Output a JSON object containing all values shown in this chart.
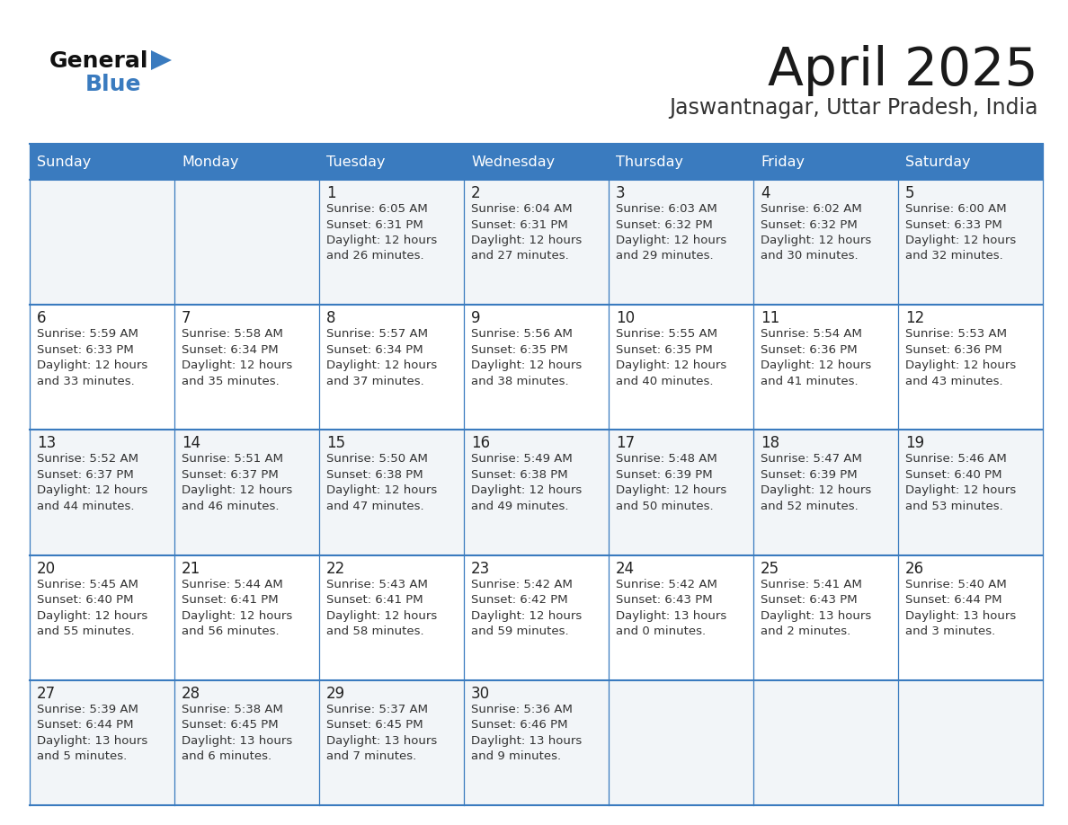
{
  "title": "April 2025",
  "subtitle": "Jaswantnagar, Uttar Pradesh, India",
  "days_of_week": [
    "Sunday",
    "Monday",
    "Tuesday",
    "Wednesday",
    "Thursday",
    "Friday",
    "Saturday"
  ],
  "header_bg": "#3a7bbf",
  "header_text": "#ffffff",
  "row_bg_odd": "#f2f5f8",
  "row_bg_even": "#ffffff",
  "cell_border": "#3a7bbf",
  "day_number_color": "#222222",
  "cell_text_color": "#333333",
  "title_color": "#1a1a1a",
  "subtitle_color": "#333333",
  "logo_general_color": "#111111",
  "logo_blue_color": "#3a7bbf",
  "logo_triangle_color": "#3a7bbf",
  "calendar_data": [
    [
      {
        "day": "",
        "sunrise": "",
        "sunset": "",
        "daylight_h": "",
        "daylight_m": ""
      },
      {
        "day": "",
        "sunrise": "",
        "sunset": "",
        "daylight_h": "",
        "daylight_m": ""
      },
      {
        "day": "1",
        "sunrise": "6:05 AM",
        "sunset": "6:31 PM",
        "daylight_h": "12 hours",
        "daylight_m": "and 26 minutes."
      },
      {
        "day": "2",
        "sunrise": "6:04 AM",
        "sunset": "6:31 PM",
        "daylight_h": "12 hours",
        "daylight_m": "and 27 minutes."
      },
      {
        "day": "3",
        "sunrise": "6:03 AM",
        "sunset": "6:32 PM",
        "daylight_h": "12 hours",
        "daylight_m": "and 29 minutes."
      },
      {
        "day": "4",
        "sunrise": "6:02 AM",
        "sunset": "6:32 PM",
        "daylight_h": "12 hours",
        "daylight_m": "and 30 minutes."
      },
      {
        "day": "5",
        "sunrise": "6:00 AM",
        "sunset": "6:33 PM",
        "daylight_h": "12 hours",
        "daylight_m": "and 32 minutes."
      }
    ],
    [
      {
        "day": "6",
        "sunrise": "5:59 AM",
        "sunset": "6:33 PM",
        "daylight_h": "12 hours",
        "daylight_m": "and 33 minutes."
      },
      {
        "day": "7",
        "sunrise": "5:58 AM",
        "sunset": "6:34 PM",
        "daylight_h": "12 hours",
        "daylight_m": "and 35 minutes."
      },
      {
        "day": "8",
        "sunrise": "5:57 AM",
        "sunset": "6:34 PM",
        "daylight_h": "12 hours",
        "daylight_m": "and 37 minutes."
      },
      {
        "day": "9",
        "sunrise": "5:56 AM",
        "sunset": "6:35 PM",
        "daylight_h": "12 hours",
        "daylight_m": "and 38 minutes."
      },
      {
        "day": "10",
        "sunrise": "5:55 AM",
        "sunset": "6:35 PM",
        "daylight_h": "12 hours",
        "daylight_m": "and 40 minutes."
      },
      {
        "day": "11",
        "sunrise": "5:54 AM",
        "sunset": "6:36 PM",
        "daylight_h": "12 hours",
        "daylight_m": "and 41 minutes."
      },
      {
        "day": "12",
        "sunrise": "5:53 AM",
        "sunset": "6:36 PM",
        "daylight_h": "12 hours",
        "daylight_m": "and 43 minutes."
      }
    ],
    [
      {
        "day": "13",
        "sunrise": "5:52 AM",
        "sunset": "6:37 PM",
        "daylight_h": "12 hours",
        "daylight_m": "and 44 minutes."
      },
      {
        "day": "14",
        "sunrise": "5:51 AM",
        "sunset": "6:37 PM",
        "daylight_h": "12 hours",
        "daylight_m": "and 46 minutes."
      },
      {
        "day": "15",
        "sunrise": "5:50 AM",
        "sunset": "6:38 PM",
        "daylight_h": "12 hours",
        "daylight_m": "and 47 minutes."
      },
      {
        "day": "16",
        "sunrise": "5:49 AM",
        "sunset": "6:38 PM",
        "daylight_h": "12 hours",
        "daylight_m": "and 49 minutes."
      },
      {
        "day": "17",
        "sunrise": "5:48 AM",
        "sunset": "6:39 PM",
        "daylight_h": "12 hours",
        "daylight_m": "and 50 minutes."
      },
      {
        "day": "18",
        "sunrise": "5:47 AM",
        "sunset": "6:39 PM",
        "daylight_h": "12 hours",
        "daylight_m": "and 52 minutes."
      },
      {
        "day": "19",
        "sunrise": "5:46 AM",
        "sunset": "6:40 PM",
        "daylight_h": "12 hours",
        "daylight_m": "and 53 minutes."
      }
    ],
    [
      {
        "day": "20",
        "sunrise": "5:45 AM",
        "sunset": "6:40 PM",
        "daylight_h": "12 hours",
        "daylight_m": "and 55 minutes."
      },
      {
        "day": "21",
        "sunrise": "5:44 AM",
        "sunset": "6:41 PM",
        "daylight_h": "12 hours",
        "daylight_m": "and 56 minutes."
      },
      {
        "day": "22",
        "sunrise": "5:43 AM",
        "sunset": "6:41 PM",
        "daylight_h": "12 hours",
        "daylight_m": "and 58 minutes."
      },
      {
        "day": "23",
        "sunrise": "5:42 AM",
        "sunset": "6:42 PM",
        "daylight_h": "12 hours",
        "daylight_m": "and 59 minutes."
      },
      {
        "day": "24",
        "sunrise": "5:42 AM",
        "sunset": "6:43 PM",
        "daylight_h": "13 hours",
        "daylight_m": "and 0 minutes."
      },
      {
        "day": "25",
        "sunrise": "5:41 AM",
        "sunset": "6:43 PM",
        "daylight_h": "13 hours",
        "daylight_m": "and 2 minutes."
      },
      {
        "day": "26",
        "sunrise": "5:40 AM",
        "sunset": "6:44 PM",
        "daylight_h": "13 hours",
        "daylight_m": "and 3 minutes."
      }
    ],
    [
      {
        "day": "27",
        "sunrise": "5:39 AM",
        "sunset": "6:44 PM",
        "daylight_h": "13 hours",
        "daylight_m": "and 5 minutes."
      },
      {
        "day": "28",
        "sunrise": "5:38 AM",
        "sunset": "6:45 PM",
        "daylight_h": "13 hours",
        "daylight_m": "and 6 minutes."
      },
      {
        "day": "29",
        "sunrise": "5:37 AM",
        "sunset": "6:45 PM",
        "daylight_h": "13 hours",
        "daylight_m": "and 7 minutes."
      },
      {
        "day": "30",
        "sunrise": "5:36 AM",
        "sunset": "6:46 PM",
        "daylight_h": "13 hours",
        "daylight_m": "and 9 minutes."
      },
      {
        "day": "",
        "sunrise": "",
        "sunset": "",
        "daylight_h": "",
        "daylight_m": ""
      },
      {
        "day": "",
        "sunrise": "",
        "sunset": "",
        "daylight_h": "",
        "daylight_m": ""
      },
      {
        "day": "",
        "sunrise": "",
        "sunset": "",
        "daylight_h": "",
        "daylight_m": ""
      }
    ]
  ]
}
